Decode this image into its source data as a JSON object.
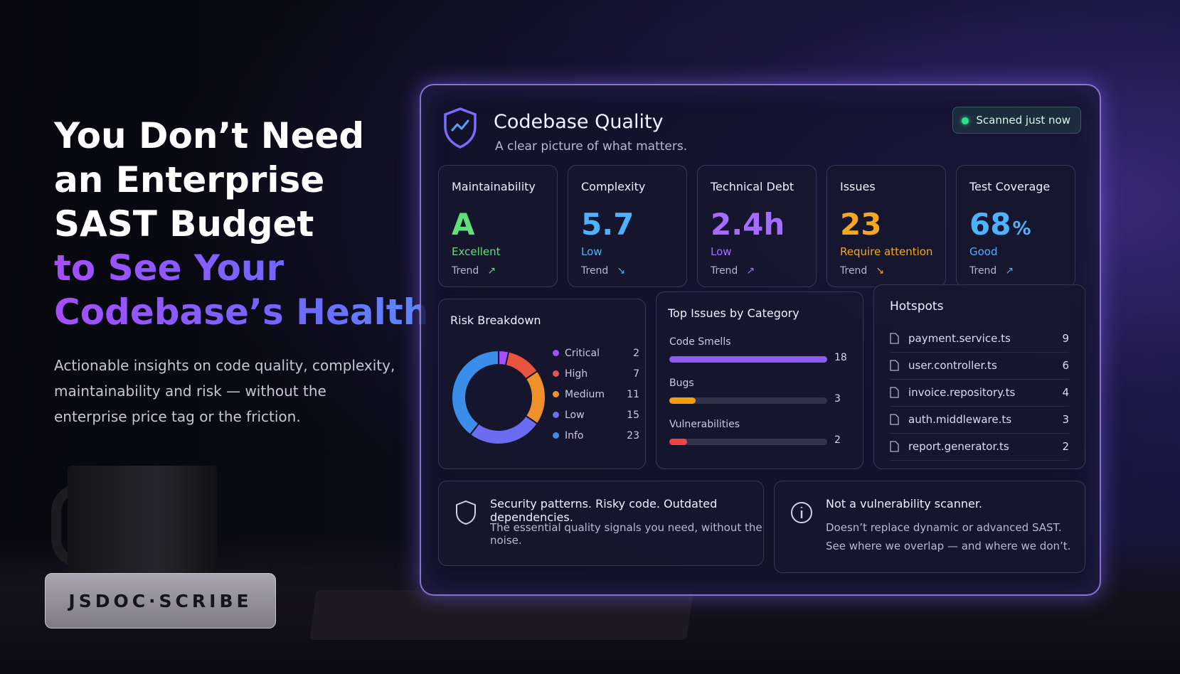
{
  "hero": {
    "title_lines": [
      "You Don’t Need",
      "an Enterprise",
      "SAST Budget"
    ],
    "highlight_lines": [
      "to See Your",
      "Codebase’s Health"
    ],
    "description_lines": [
      "Actionable insights on code quality, complexity,",
      "maintainability and risk — without the",
      "enterprise price tag or the friction."
    ],
    "brand": "JSDOC·SCRIBE"
  },
  "dashboard": {
    "title": "Codebase Quality",
    "subtitle": "A clear picture of what matters.",
    "status": "Scanned just now",
    "metrics": [
      {
        "label": "Maintainability",
        "value": "A",
        "status": "Excellent",
        "trend_label": "Trend",
        "trend_icon": "↗",
        "color": "#5fe07a"
      },
      {
        "label": "Complexity",
        "value": "5.7",
        "status": "Low",
        "trend_label": "Trend",
        "trend_icon": "↘",
        "color": "#4fb2ff"
      },
      {
        "label": "Technical Debt",
        "value": "2.4h",
        "status": "Low",
        "trend_label": "Trend",
        "trend_icon": "↗",
        "color": "#a66bff"
      },
      {
        "label": "Issues",
        "value": "23",
        "status": "Require attention",
        "trend_label": "Trend",
        "trend_icon": "↘",
        "color": "#f5a623"
      },
      {
        "label": "Test Coverage",
        "value": "68",
        "unit": "%",
        "status": "Good",
        "trend_label": "Trend",
        "trend_icon": "↗",
        "color": "#4fb2ff"
      }
    ],
    "risk_breakdown": {
      "title": "Risk Breakdown",
      "items": [
        {
          "name": "Critical",
          "value": 2,
          "color": "#a64dff"
        },
        {
          "name": "High",
          "value": 7,
          "color": "#e8553f"
        },
        {
          "name": "Medium",
          "value": 11,
          "color": "#f0922b"
        },
        {
          "name": "Low",
          "value": 15,
          "color": "#6c6cf0"
        },
        {
          "name": "Info",
          "value": 23,
          "color": "#3a8de8"
        }
      ]
    },
    "top_issues": {
      "title": "Top Issues by Category",
      "items": [
        {
          "name": "Code Smells",
          "value": 18,
          "color": "#8b5cf6"
        },
        {
          "name": "Bugs",
          "value": 3,
          "color": "#f59e0b"
        },
        {
          "name": "Vulnerabilities",
          "value": 2,
          "color": "#ef4444"
        }
      ]
    },
    "hotspots": {
      "title": "Hotspots",
      "items": [
        {
          "file": "payment.service.ts",
          "count": "9"
        },
        {
          "file": "user.controller.ts",
          "count": "6"
        },
        {
          "file": "invoice.repository.ts",
          "count": "4"
        },
        {
          "file": "auth.middleware.ts",
          "count": "3"
        },
        {
          "file": "report.generator.ts",
          "count": "2"
        }
      ]
    },
    "notes": [
      {
        "title": "Security patterns. Risky code. Outdated dependencies.",
        "lines": [
          "The essential quality signals you need, without the noise."
        ]
      },
      {
        "title": "Not a vulnerability scanner.",
        "lines": [
          "Doesn’t replace dynamic or advanced SAST.",
          "See where we overlap — and where we don’t."
        ]
      }
    ]
  }
}
